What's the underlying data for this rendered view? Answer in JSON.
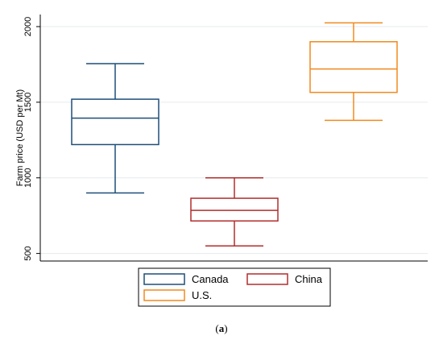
{
  "chart_data": {
    "type": "box",
    "ylabel": "Farm price (USD per Mt)",
    "ylim": [
      450,
      2080
    ],
    "yticks": [
      500,
      1000,
      1500,
      2000
    ],
    "grid": true,
    "legend_position": "bottom",
    "series": [
      {
        "name": "Canada",
        "color": "#1f4e79",
        "whisker_low": 900,
        "q1": 1220,
        "median": 1395,
        "q3": 1520,
        "whisker_high": 1755
      },
      {
        "name": "China",
        "color": "#b22d2d",
        "whisker_low": 550,
        "q1": 715,
        "median": 785,
        "q3": 865,
        "whisker_high": 1000
      },
      {
        "name": "U.S.",
        "color": "#f08a1e",
        "whisker_low": 1380,
        "q1": 1565,
        "median": 1720,
        "q3": 1900,
        "whisker_high": 2025
      }
    ]
  },
  "caption": {
    "open": "(",
    "letter": "a",
    "close": ")"
  }
}
